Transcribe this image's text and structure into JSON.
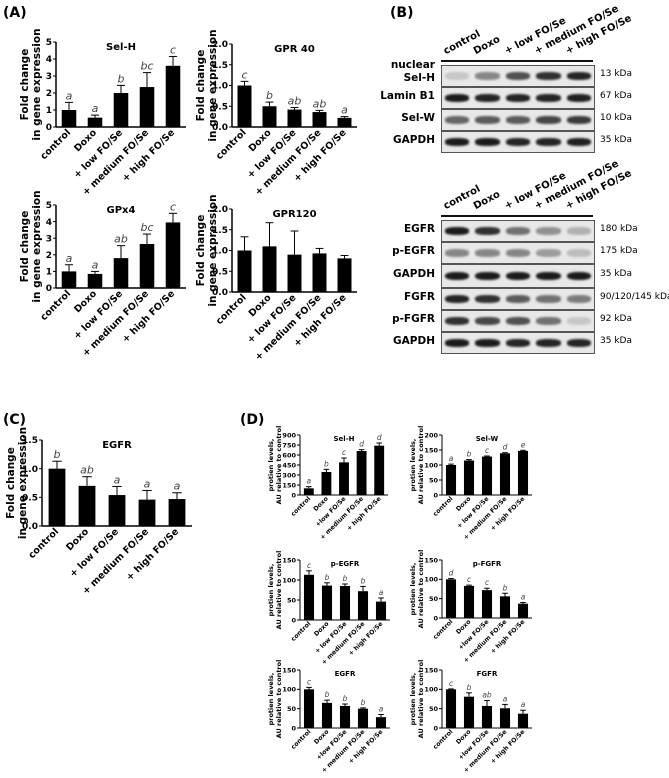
{
  "panels": {
    "A": "(A)",
    "B": "(B)",
    "C": "(C)",
    "D": "(D)"
  },
  "groups": [
    "control",
    "Doxo",
    "+ low FO/Se",
    "+ medium FO/Se",
    "+ high FO/Se"
  ],
  "blots": {
    "lanes": [
      "control",
      "Doxo",
      "+ low FO/Se",
      "+ medium FO/Se",
      "+ high FO/Se"
    ],
    "top": [
      {
        "label": "nuclear Sel-H",
        "kda": "13 kDa",
        "intensity": [
          0.15,
          0.45,
          0.7,
          0.85,
          0.9
        ]
      },
      {
        "label": "Lamin B1",
        "kda": "67 kDa",
        "intensity": [
          0.95,
          0.9,
          0.9,
          0.9,
          0.92
        ]
      },
      {
        "label": "Sel-W",
        "kda": "10 kDa",
        "intensity": [
          0.6,
          0.65,
          0.65,
          0.75,
          0.8
        ]
      },
      {
        "label": "GAPDH",
        "kda": "35 kDa",
        "intensity": [
          0.95,
          0.95,
          0.9,
          0.9,
          0.92
        ]
      }
    ],
    "bottom": [
      {
        "label": "EGFR",
        "kda": "180 kDa",
        "intensity": [
          0.95,
          0.85,
          0.55,
          0.4,
          0.25
        ]
      },
      {
        "label": "p-EGFR",
        "kda": "175 kDa",
        "intensity": [
          0.45,
          0.45,
          0.45,
          0.35,
          0.2
        ]
      },
      {
        "label": "GAPDH",
        "kda": "35 kDa",
        "intensity": [
          0.95,
          0.95,
          0.95,
          0.95,
          0.95
        ]
      },
      {
        "label": "FGFR",
        "kda": "90/120/145 kDa",
        "intensity": [
          0.9,
          0.85,
          0.65,
          0.55,
          0.5
        ]
      },
      {
        "label": "p-FGFR",
        "kda": "92 kDa",
        "intensity": [
          0.85,
          0.75,
          0.7,
          0.55,
          0.15
        ]
      },
      {
        "label": "GAPDH",
        "kda": "35 kDa",
        "intensity": [
          0.95,
          0.95,
          0.9,
          0.9,
          0.9
        ]
      }
    ]
  },
  "chart_data": [
    {
      "id": "A1",
      "type": "bar",
      "title": "Sel-H",
      "ylabel": "Fold change in gene expression",
      "categories": [
        "control",
        "Doxo",
        "+ low FO/Se",
        "+ medium FO/Se",
        "+ high FO/Se"
      ],
      "values": [
        1.0,
        0.55,
        2.0,
        2.35,
        3.6
      ],
      "errors": [
        0.45,
        0.15,
        0.45,
        0.85,
        0.55
      ],
      "letters": [
        "a",
        "a",
        "b",
        "bc",
        "c"
      ],
      "ylim": [
        0,
        5
      ],
      "yticks": [
        "0",
        "1",
        "2",
        "3",
        "4",
        "5"
      ]
    },
    {
      "id": "A2",
      "type": "bar",
      "title": "GPR 40",
      "ylabel": "Fold change in gene expression",
      "categories": [
        "control",
        "Doxo",
        "+ low FO/Se",
        "+ medium FO/Se",
        "+ high FO/Se"
      ],
      "values": [
        1.0,
        0.5,
        0.42,
        0.36,
        0.22
      ],
      "errors": [
        0.1,
        0.1,
        0.05,
        0.04,
        0.03
      ],
      "letters": [
        "c",
        "b",
        "ab",
        "ab",
        "a"
      ],
      "ylim": [
        0,
        2
      ],
      "yticks": [
        "0.0",
        "0.5",
        "1.0",
        "1.5",
        "2.0"
      ]
    },
    {
      "id": "A3",
      "type": "bar",
      "title": "GPx4",
      "ylabel": "Fold change in gene expression",
      "categories": [
        "control",
        "Doxo",
        "+ low FO/Se",
        "+ medium FO/Se",
        "+ high FO/Se"
      ],
      "values": [
        1.0,
        0.85,
        1.8,
        2.65,
        3.95
      ],
      "errors": [
        0.4,
        0.15,
        0.75,
        0.6,
        0.55
      ],
      "letters": [
        "a",
        "a",
        "ab",
        "bc",
        "c"
      ],
      "ylim": [
        0,
        5
      ],
      "yticks": [
        "0",
        "1",
        "2",
        "3",
        "4",
        "5"
      ]
    },
    {
      "id": "A4",
      "type": "bar",
      "title": "GPR120",
      "ylabel": "Fold change in gene expression",
      "categories": [
        "control",
        "Doxo",
        "+ low FO/Se",
        "+ medium FO/Se",
        "+ high FO/Se"
      ],
      "values": [
        1.0,
        1.1,
        0.9,
        0.93,
        0.81
      ],
      "errors": [
        0.33,
        0.57,
        0.57,
        0.12,
        0.07
      ],
      "letters": [
        "",
        "",
        "",
        "",
        ""
      ],
      "ylim": [
        0,
        2
      ],
      "yticks": [
        "0.0",
        "0.5",
        "1.0",
        "1.5",
        "2.0"
      ]
    },
    {
      "id": "C",
      "type": "bar",
      "title": "EGFR",
      "ylabel": "Fold change in gene expression",
      "categories": [
        "control",
        "Doxo",
        "+ low FO/Se",
        "+ medium FO/Se",
        "+ high FO/Se"
      ],
      "values": [
        1.0,
        0.7,
        0.54,
        0.46,
        0.47
      ],
      "errors": [
        0.13,
        0.16,
        0.15,
        0.16,
        0.11
      ],
      "letters": [
        "b",
        "ab",
        "a",
        "a",
        "a"
      ],
      "ylim": [
        0,
        1.5
      ],
      "yticks": [
        "0.0",
        "0.5",
        "1.0",
        "1.5"
      ]
    },
    {
      "id": "D1",
      "type": "bar",
      "title": "Sel-H",
      "ylabel": "protien levels, AU relative to control",
      "categories": [
        "control",
        "Doxo",
        "+low FO/Se",
        "+ medium FO/Se",
        "+ high FO/Se"
      ],
      "values": [
        100,
        345,
        490,
        660,
        740
      ],
      "errors": [
        25,
        40,
        65,
        20,
        40
      ],
      "letters": [
        "a",
        "b",
        "c",
        "d",
        "d"
      ],
      "ylim": [
        0,
        900
      ],
      "yticks": [
        "0",
        "150",
        "300",
        "450",
        "600",
        "750",
        "900"
      ]
    },
    {
      "id": "D2",
      "type": "bar",
      "title": "Sel-W",
      "ylabel": "protien levels, AU relative to control",
      "categories": [
        "control",
        "Doxo",
        "+ low FO/Se",
        "+ medium FO/Se",
        "+ high FO/Se"
      ],
      "values": [
        100,
        115,
        128,
        139,
        147
      ],
      "errors": [
        3,
        3,
        2,
        2,
        2
      ],
      "letters": [
        "a",
        "b",
        "c",
        "d",
        "e"
      ],
      "ylim": [
        0,
        200
      ],
      "yticks": [
        "0",
        "50",
        "100",
        "150",
        "200"
      ]
    },
    {
      "id": "D3",
      "type": "bar",
      "title": "p-EGFR",
      "ylabel": "protien levels, AU relative to control",
      "categories": [
        "control",
        "Doxo",
        "+ low FO/Se",
        "+ medium FO/Se",
        "+ high FO/Se"
      ],
      "values": [
        113,
        86,
        85,
        72,
        46
      ],
      "errors": [
        10,
        7,
        5,
        12,
        9
      ],
      "letters": [
        "c",
        "b",
        "b",
        "b",
        "a"
      ],
      "ylim": [
        0,
        150
      ],
      "yticks": [
        "0",
        "50",
        "100",
        "150"
      ]
    },
    {
      "id": "D4",
      "type": "bar",
      "title": "p-FGFR",
      "ylabel": "protien levels, AU relative to control",
      "categories": [
        "control",
        "Doxo",
        "+low FO/Se",
        "+ medium FO/Se",
        "+ high FO/Se"
      ],
      "values": [
        100,
        83,
        72,
        56,
        37
      ],
      "errors": [
        2,
        2,
        5,
        8,
        3
      ],
      "letters": [
        "d",
        "c",
        "c",
        "b",
        "a"
      ],
      "ylim": [
        0,
        150
      ],
      "yticks": [
        "0",
        "50",
        "100",
        "150"
      ]
    },
    {
      "id": "D5",
      "type": "bar",
      "title": "EGFR",
      "ylabel": "protien levels, AU relative to control",
      "categories": [
        "control",
        "Doxo",
        "+low FO/Se",
        "+ medium FO/Se",
        "+ high FO/Se"
      ],
      "values": [
        100,
        65,
        57,
        50,
        28
      ],
      "errors": [
        5,
        7,
        5,
        2,
        7
      ],
      "letters": [
        "c",
        "b",
        "b",
        "b",
        "a"
      ],
      "ylim": [
        0,
        150
      ],
      "yticks": [
        "0",
        "50",
        "100",
        "150"
      ]
    },
    {
      "id": "D6",
      "type": "bar",
      "title": "FGFR",
      "ylabel": "protien levels, AU relative to control",
      "categories": [
        "control",
        "Doxo",
        "+low FO/Se",
        "+ medium FO/Se",
        "+ high FO/Se"
      ],
      "values": [
        100,
        81,
        57,
        51,
        37
      ],
      "errors": [
        1,
        10,
        14,
        10,
        9
      ],
      "letters": [
        "c",
        "b",
        "ab",
        "a",
        "a"
      ],
      "ylim": [
        0,
        150
      ],
      "yticks": [
        "0",
        "50",
        "100",
        "150"
      ]
    }
  ]
}
